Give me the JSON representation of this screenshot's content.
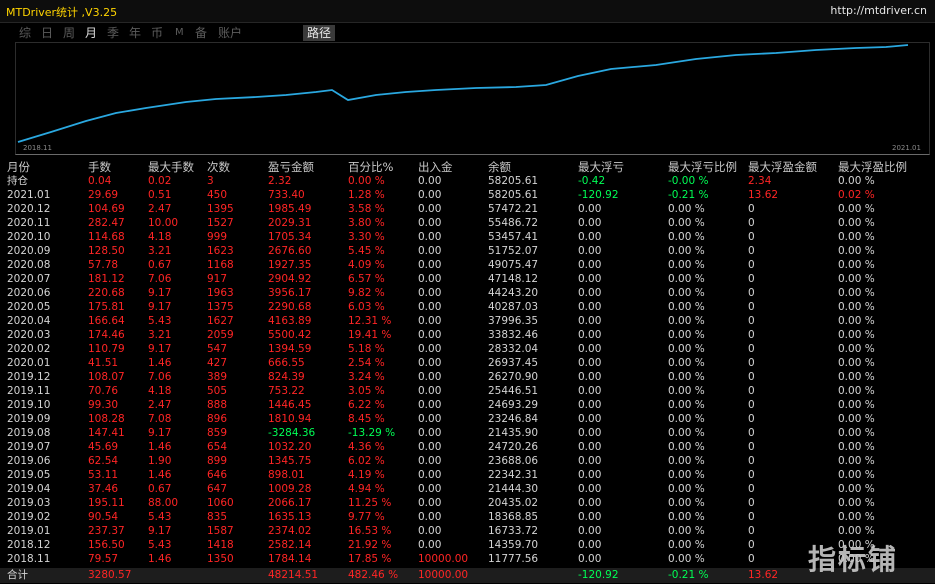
{
  "app": {
    "title": "MTDriver统计 ,V3.25",
    "site": "http://mtdriver.cn"
  },
  "tabs": [
    "综",
    "日",
    "周",
    "月",
    "季",
    "年",
    "币",
    "M",
    "备",
    "账户"
  ],
  "active_tab": "月",
  "path_button": "路径",
  "chart": {
    "x_start_label": "2018.11",
    "x_end_label": "2021.01",
    "line_color": "#2aa8e0"
  },
  "table": {
    "headers": [
      "月份",
      "手数",
      "最大手数",
      "次数",
      "盈亏金额",
      "百分比%",
      "出入金",
      "余额",
      "最大浮亏",
      "最大浮亏比例",
      "最大浮盈金额",
      "最大浮盈比例"
    ],
    "rows": [
      {
        "month": "持仓",
        "lots": "0.04",
        "max_lots": "0.02",
        "count": "3",
        "pnl": "2.32",
        "pct": "0.00 %",
        "flow": "0.00",
        "balance": "58205.61",
        "max_fl": "-0.42",
        "max_fl_pct": "-0.00 %",
        "max_fp": "2.34",
        "max_fp_pct": "0.00 %"
      },
      {
        "month": "2021.01",
        "lots": "29.69",
        "max_lots": "0.51",
        "count": "450",
        "pnl": "733.40",
        "pct": "1.28 %",
        "flow": "0.00",
        "balance": "58205.61",
        "max_fl": "-120.92",
        "max_fl_pct": "-0.21 %",
        "max_fp": "13.62",
        "max_fp_pct": "0.02 %"
      },
      {
        "month": "2020.12",
        "lots": "104.69",
        "max_lots": "2.47",
        "count": "1395",
        "pnl": "1985.49",
        "pct": "3.58 %",
        "flow": "0.00",
        "balance": "57472.21",
        "max_fl": "0.00",
        "max_fl_pct": "0.00 %",
        "max_fp": "0",
        "max_fp_pct": "0.00 %"
      },
      {
        "month": "2020.11",
        "lots": "282.47",
        "max_lots": "10.00",
        "count": "1527",
        "pnl": "2029.31",
        "pct": "3.80 %",
        "flow": "0.00",
        "balance": "55486.72",
        "max_fl": "0.00",
        "max_fl_pct": "0.00 %",
        "max_fp": "0",
        "max_fp_pct": "0.00 %"
      },
      {
        "month": "2020.10",
        "lots": "114.68",
        "max_lots": "4.18",
        "count": "999",
        "pnl": "1705.34",
        "pct": "3.30 %",
        "flow": "0.00",
        "balance": "53457.41",
        "max_fl": "0.00",
        "max_fl_pct": "0.00 %",
        "max_fp": "0",
        "max_fp_pct": "0.00 %"
      },
      {
        "month": "2020.09",
        "lots": "128.50",
        "max_lots": "3.21",
        "count": "1623",
        "pnl": "2676.60",
        "pct": "5.45 %",
        "flow": "0.00",
        "balance": "51752.07",
        "max_fl": "0.00",
        "max_fl_pct": "0.00 %",
        "max_fp": "0",
        "max_fp_pct": "0.00 %"
      },
      {
        "month": "2020.08",
        "lots": "57.78",
        "max_lots": "0.67",
        "count": "1168",
        "pnl": "1927.35",
        "pct": "4.09 %",
        "flow": "0.00",
        "balance": "49075.47",
        "max_fl": "0.00",
        "max_fl_pct": "0.00 %",
        "max_fp": "0",
        "max_fp_pct": "0.00 %"
      },
      {
        "month": "2020.07",
        "lots": "181.12",
        "max_lots": "7.06",
        "count": "917",
        "pnl": "2904.92",
        "pct": "6.57 %",
        "flow": "0.00",
        "balance": "47148.12",
        "max_fl": "0.00",
        "max_fl_pct": "0.00 %",
        "max_fp": "0",
        "max_fp_pct": "0.00 %"
      },
      {
        "month": "2020.06",
        "lots": "220.68",
        "max_lots": "9.17",
        "count": "1963",
        "pnl": "3956.17",
        "pct": "9.82 %",
        "flow": "0.00",
        "balance": "44243.20",
        "max_fl": "0.00",
        "max_fl_pct": "0.00 %",
        "max_fp": "0",
        "max_fp_pct": "0.00 %"
      },
      {
        "month": "2020.05",
        "lots": "175.81",
        "max_lots": "9.17",
        "count": "1375",
        "pnl": "2290.68",
        "pct": "6.03 %",
        "flow": "0.00",
        "balance": "40287.03",
        "max_fl": "0.00",
        "max_fl_pct": "0.00 %",
        "max_fp": "0",
        "max_fp_pct": "0.00 %"
      },
      {
        "month": "2020.04",
        "lots": "166.64",
        "max_lots": "5.43",
        "count": "1627",
        "pnl": "4163.89",
        "pct": "12.31 %",
        "flow": "0.00",
        "balance": "37996.35",
        "max_fl": "0.00",
        "max_fl_pct": "0.00 %",
        "max_fp": "0",
        "max_fp_pct": "0.00 %"
      },
      {
        "month": "2020.03",
        "lots": "174.46",
        "max_lots": "3.21",
        "count": "2059",
        "pnl": "5500.42",
        "pct": "19.41 %",
        "flow": "0.00",
        "balance": "33832.46",
        "max_fl": "0.00",
        "max_fl_pct": "0.00 %",
        "max_fp": "0",
        "max_fp_pct": "0.00 %"
      },
      {
        "month": "2020.02",
        "lots": "110.79",
        "max_lots": "9.17",
        "count": "547",
        "pnl": "1394.59",
        "pct": "5.18 %",
        "flow": "0.00",
        "balance": "28332.04",
        "max_fl": "0.00",
        "max_fl_pct": "0.00 %",
        "max_fp": "0",
        "max_fp_pct": "0.00 %"
      },
      {
        "month": "2020.01",
        "lots": "41.51",
        "max_lots": "1.46",
        "count": "427",
        "pnl": "666.55",
        "pct": "2.54 %",
        "flow": "0.00",
        "balance": "26937.45",
        "max_fl": "0.00",
        "max_fl_pct": "0.00 %",
        "max_fp": "0",
        "max_fp_pct": "0.00 %"
      },
      {
        "month": "2019.12",
        "lots": "108.07",
        "max_lots": "7.06",
        "count": "389",
        "pnl": "824.39",
        "pct": "3.24 %",
        "flow": "0.00",
        "balance": "26270.90",
        "max_fl": "0.00",
        "max_fl_pct": "0.00 %",
        "max_fp": "0",
        "max_fp_pct": "0.00 %"
      },
      {
        "month": "2019.11",
        "lots": "70.76",
        "max_lots": "4.18",
        "count": "505",
        "pnl": "753.22",
        "pct": "3.05 %",
        "flow": "0.00",
        "balance": "25446.51",
        "max_fl": "0.00",
        "max_fl_pct": "0.00 %",
        "max_fp": "0",
        "max_fp_pct": "0.00 %"
      },
      {
        "month": "2019.10",
        "lots": "99.30",
        "max_lots": "2.47",
        "count": "888",
        "pnl": "1446.45",
        "pct": "6.22 %",
        "flow": "0.00",
        "balance": "24693.29",
        "max_fl": "0.00",
        "max_fl_pct": "0.00 %",
        "max_fp": "0",
        "max_fp_pct": "0.00 %"
      },
      {
        "month": "2019.09",
        "lots": "108.28",
        "max_lots": "7.08",
        "count": "896",
        "pnl": "1810.94",
        "pct": "8.45 %",
        "flow": "0.00",
        "balance": "23246.84",
        "max_fl": "0.00",
        "max_fl_pct": "0.00 %",
        "max_fp": "0",
        "max_fp_pct": "0.00 %"
      },
      {
        "month": "2019.08",
        "lots": "147.41",
        "max_lots": "9.17",
        "count": "859",
        "pnl": "-3284.36",
        "pct": "-13.29 %",
        "flow": "0.00",
        "balance": "21435.90",
        "max_fl": "0.00",
        "max_fl_pct": "0.00 %",
        "max_fp": "0",
        "max_fp_pct": "0.00 %"
      },
      {
        "month": "2019.07",
        "lots": "45.69",
        "max_lots": "1.46",
        "count": "654",
        "pnl": "1032.20",
        "pct": "4.36 %",
        "flow": "0.00",
        "balance": "24720.26",
        "max_fl": "0.00",
        "max_fl_pct": "0.00 %",
        "max_fp": "0",
        "max_fp_pct": "0.00 %"
      },
      {
        "month": "2019.06",
        "lots": "62.54",
        "max_lots": "1.90",
        "count": "899",
        "pnl": "1345.75",
        "pct": "6.02 %",
        "flow": "0.00",
        "balance": "23688.06",
        "max_fl": "0.00",
        "max_fl_pct": "0.00 %",
        "max_fp": "0",
        "max_fp_pct": "0.00 %"
      },
      {
        "month": "2019.05",
        "lots": "53.11",
        "max_lots": "1.46",
        "count": "646",
        "pnl": "898.01",
        "pct": "4.19 %",
        "flow": "0.00",
        "balance": "22342.31",
        "max_fl": "0.00",
        "max_fl_pct": "0.00 %",
        "max_fp": "0",
        "max_fp_pct": "0.00 %"
      },
      {
        "month": "2019.04",
        "lots": "37.46",
        "max_lots": "0.67",
        "count": "647",
        "pnl": "1009.28",
        "pct": "4.94 %",
        "flow": "0.00",
        "balance": "21444.30",
        "max_fl": "0.00",
        "max_fl_pct": "0.00 %",
        "max_fp": "0",
        "max_fp_pct": "0.00 %"
      },
      {
        "month": "2019.03",
        "lots": "195.11",
        "max_lots": "88.00",
        "count": "1060",
        "pnl": "2066.17",
        "pct": "11.25 %",
        "flow": "0.00",
        "balance": "20435.02",
        "max_fl": "0.00",
        "max_fl_pct": "0.00 %",
        "max_fp": "0",
        "max_fp_pct": "0.00 %"
      },
      {
        "month": "2019.02",
        "lots": "90.54",
        "max_lots": "5.43",
        "count": "835",
        "pnl": "1635.13",
        "pct": "9.77 %",
        "flow": "0.00",
        "balance": "18368.85",
        "max_fl": "0.00",
        "max_fl_pct": "0.00 %",
        "max_fp": "0",
        "max_fp_pct": "0.00 %"
      },
      {
        "month": "2019.01",
        "lots": "237.37",
        "max_lots": "9.17",
        "count": "1587",
        "pnl": "2374.02",
        "pct": "16.53 %",
        "flow": "0.00",
        "balance": "16733.72",
        "max_fl": "0.00",
        "max_fl_pct": "0.00 %",
        "max_fp": "0",
        "max_fp_pct": "0.00 %"
      },
      {
        "month": "2018.12",
        "lots": "156.50",
        "max_lots": "5.43",
        "count": "1418",
        "pnl": "2582.14",
        "pct": "21.92 %",
        "flow": "0.00",
        "balance": "14359.70",
        "max_fl": "0.00",
        "max_fl_pct": "0.00 %",
        "max_fp": "0",
        "max_fp_pct": "0.00 %"
      },
      {
        "month": "2018.11",
        "lots": "79.57",
        "max_lots": "1.46",
        "count": "1350",
        "pnl": "1784.14",
        "pct": "17.85 %",
        "flow": "10000.00",
        "balance": "11777.56",
        "max_fl": "0.00",
        "max_fl_pct": "0.00 %",
        "max_fp": "0",
        "max_fp_pct": "0.00 %"
      }
    ],
    "total": {
      "month": "合计",
      "lots": "3280.57",
      "max_lots": "",
      "count": "",
      "pnl": "48214.51",
      "pct": "482.46 %",
      "flow": "10000.00",
      "balance": "",
      "max_fl": "-120.92",
      "max_fl_pct": "-0.21 %",
      "max_fp": "13.62",
      "max_fp_pct": ""
    }
  },
  "watermark": "指标铺",
  "colors": {
    "title": "#ffd400",
    "negative_red": "#ff2525",
    "positive_green": "#00ff55",
    "line": "#2aa8e0"
  }
}
